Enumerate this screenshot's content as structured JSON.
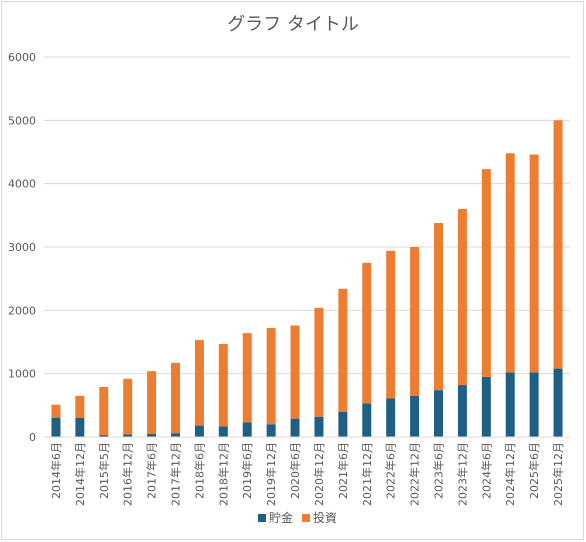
{
  "chart_data": {
    "type": "bar",
    "stacked": true,
    "title": "グラフ タイトル",
    "categories": [
      "2014年6月",
      "2014年12月",
      "2015年5月",
      "2016年12月",
      "2017年6月",
      "2017年12月",
      "2018年6月",
      "2018年12月",
      "2019年6月",
      "2019年12月",
      "2020年6月",
      "2020年12月",
      "2021年6月",
      "2021年12月",
      "2022年6月",
      "2022年12月",
      "2023年6月",
      "2023年12月",
      "2024年6月",
      "2024年12月",
      "2025年6月",
      "2025年12月"
    ],
    "series": [
      {
        "name": "貯金",
        "color": "#1f5f85",
        "values": [
          300,
          300,
          30,
          40,
          50,
          60,
          180,
          170,
          230,
          200,
          290,
          320,
          400,
          530,
          610,
          650,
          740,
          820,
          950,
          1020,
          1020,
          1080
        ]
      },
      {
        "name": "投資",
        "color": "#ed7d31",
        "values": [
          210,
          350,
          760,
          880,
          990,
          1110,
          1350,
          1300,
          1410,
          1520,
          1470,
          1720,
          1940,
          2220,
          2330,
          2350,
          2640,
          2780,
          3280,
          3460,
          3440,
          3920
        ]
      }
    ],
    "ylim": [
      0,
      6000
    ],
    "yticks": [
      0,
      1000,
      2000,
      3000,
      4000,
      5000,
      6000
    ],
    "grid": true,
    "legend": "bottom"
  }
}
